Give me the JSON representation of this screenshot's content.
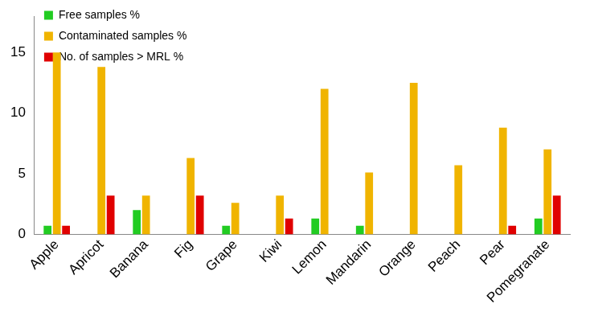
{
  "chart_data": {
    "type": "bar",
    "categories": [
      "Apple",
      "Apricot",
      "Banana",
      "Fig",
      "Grape",
      "Kiwi",
      "Lemon",
      "Mandarin",
      "Orange",
      "Peach",
      "Pear",
      "Pomegranate"
    ],
    "series": [
      {
        "name": "Free samples %",
        "color": "#22cc22",
        "values": [
          0.7,
          0,
          2.0,
          0,
          0.7,
          0,
          1.3,
          0.7,
          0,
          0,
          0,
          1.3
        ]
      },
      {
        "name": "Contaminated samples %",
        "color": "#f0b400",
        "values": [
          15.0,
          13.8,
          3.2,
          6.3,
          2.6,
          3.2,
          12.0,
          5.1,
          12.5,
          5.7,
          8.8,
          7.0
        ]
      },
      {
        "name": "No. of samples > MRL %",
        "color": "#e00000",
        "values": [
          0.7,
          3.2,
          0,
          3.2,
          0,
          1.3,
          0,
          0,
          0,
          0,
          0.7,
          3.2
        ]
      }
    ],
    "ylim": [
      0,
      18
    ],
    "yticks": [
      0,
      5,
      10,
      15
    ],
    "grid": false,
    "legend": "top-left"
  }
}
